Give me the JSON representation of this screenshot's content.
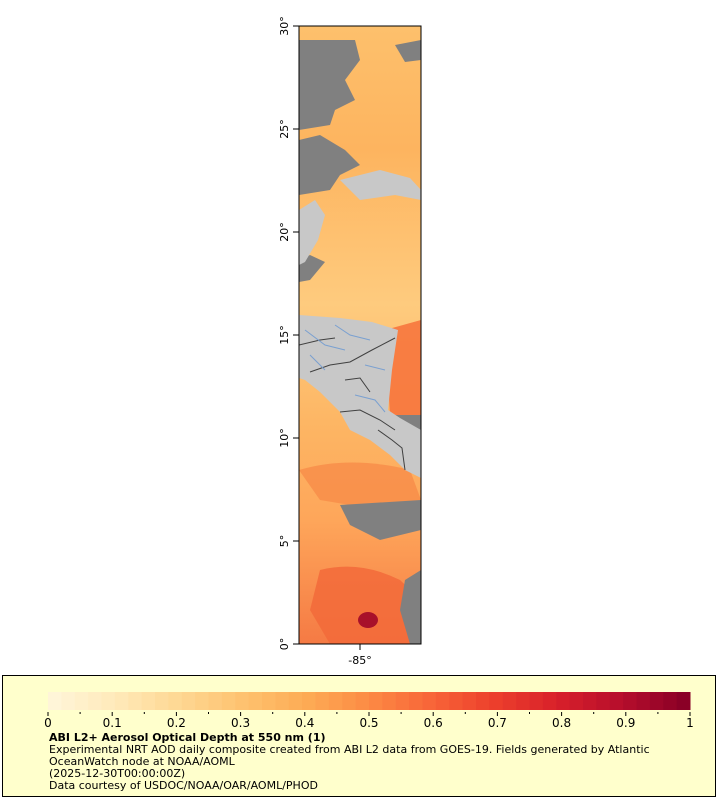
{
  "map": {
    "lat_labels": [
      "30°",
      "25°",
      "20°",
      "15°",
      "10°",
      "5°",
      "0°"
    ],
    "lon_labels": [
      "-85°"
    ],
    "colors": {
      "land": "#c8c8c8",
      "nodata": "#808080",
      "border": "#404040",
      "river": "#7aa0d0"
    }
  },
  "legend": {
    "ticks": [
      "0",
      "0.1",
      "0.2",
      "0.3",
      "0.4",
      "0.5",
      "0.6",
      "0.7",
      "0.8",
      "0.9",
      "1"
    ],
    "title": "ABI L2+ Aerosol Optical Depth at 550 nm (1)",
    "line1": "Experimental NRT AOD daily composite created from ABI L2 data from GOES-19. Fields generated by Atlantic OceanWatch node at NOAA/AOML",
    "line2": "(2025-12-30T00:00:00Z)",
    "line3": "Data courtesy of USDOC/NOAA/OAR/AOML/PHOD",
    "colors": [
      "#fff5d8",
      "#ffe9b8",
      "#fed792",
      "#fec26f",
      "#fdab55",
      "#fc8a44",
      "#f86438",
      "#ec3f2c",
      "#d8202a",
      "#b70e2c",
      "#8a0026"
    ]
  }
}
